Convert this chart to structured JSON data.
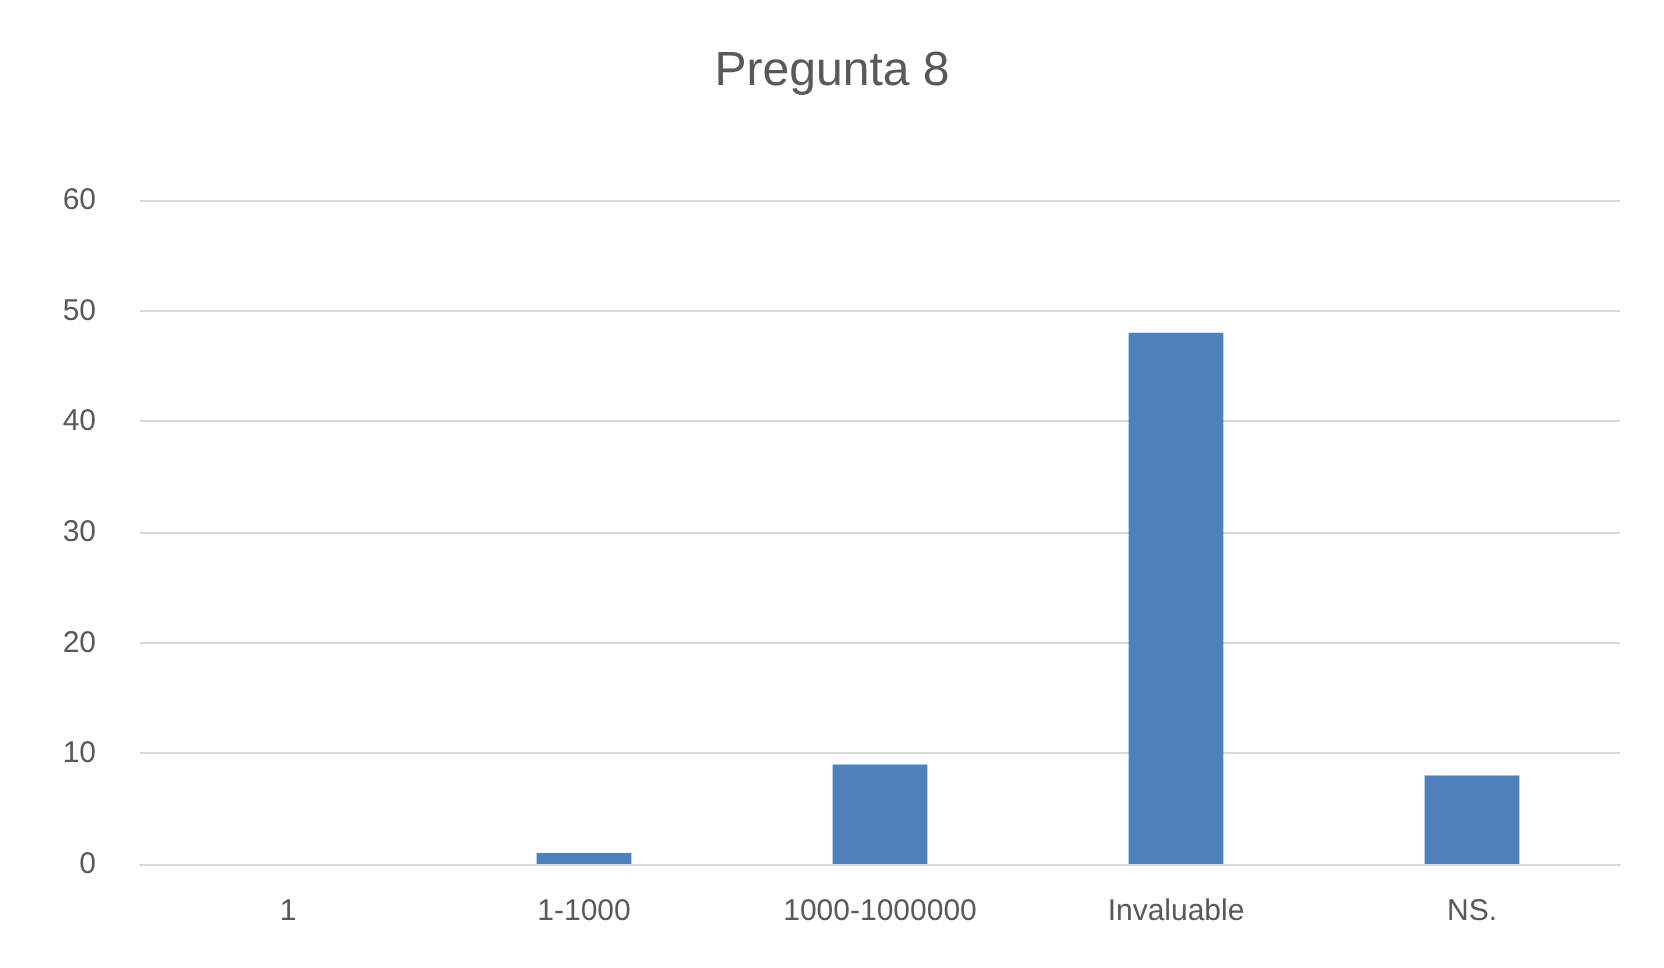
{
  "chart_data": {
    "type": "bar",
    "title": "Pregunta 8",
    "categories": [
      "1",
      "1-1000",
      "1000-1000000",
      "Invaluable",
      "NS."
    ],
    "values": [
      0,
      1,
      9,
      48,
      8
    ],
    "color": "#4f81bd",
    "ylim": [
      0,
      60
    ],
    "yticks": [
      0,
      10,
      20,
      30,
      40,
      50,
      60
    ],
    "grid": "y"
  }
}
